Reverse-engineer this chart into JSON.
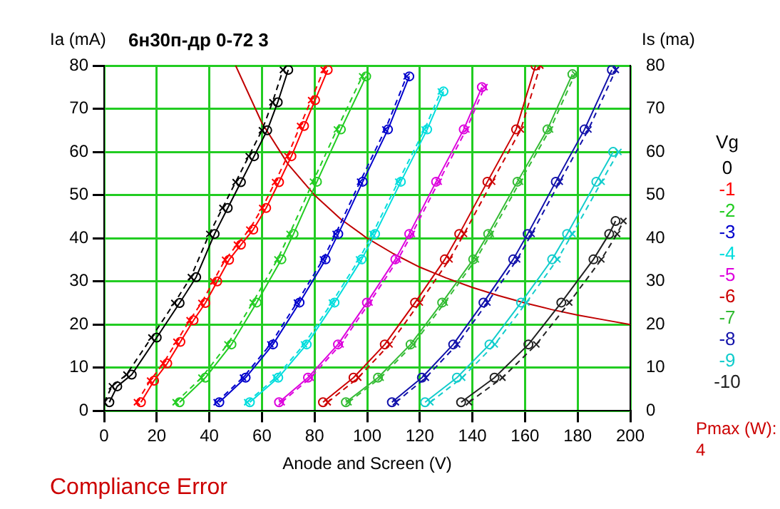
{
  "chart_data": {
    "type": "line",
    "title": "6н30п-др 0-72 3",
    "xlabel": "Anode and Screen (V)",
    "ylabel": "Ia (mA)",
    "y2label": "Is (ma)",
    "legend_title": "Vg",
    "legend": "right",
    "grid": true,
    "xlim": [
      0,
      200
    ],
    "xticks": [
      0,
      20,
      40,
      60,
      80,
      100,
      120,
      140,
      160,
      180,
      200
    ],
    "ylim": [
      0,
      80
    ],
    "yticks": [
      0,
      10,
      20,
      30,
      40,
      50,
      60,
      70,
      80
    ],
    "y2lim": [
      0,
      80
    ],
    "y2ticks": [
      0,
      10,
      20,
      30,
      40,
      50,
      60,
      70,
      80
    ],
    "annotations": [
      "Compliance Error",
      "Pmax (W):",
      "4"
    ],
    "series": [
      {
        "name": "0",
        "color": "#000000",
        "marker": "circle",
        "x": [
          2,
          5,
          10.5,
          20,
          28.7,
          35,
          42,
          47,
          52,
          57,
          62,
          66,
          70
        ],
        "values": [
          2,
          5.7,
          8.4,
          17,
          25,
          31,
          41,
          47,
          53,
          59,
          65,
          71.5,
          79
        ]
      },
      {
        "name": "-1",
        "color": "#ff0000",
        "marker": "circle",
        "x": [
          14,
          19,
          24,
          29,
          34,
          38.5,
          43,
          47.5,
          52,
          56.7,
          61.6,
          66.5,
          71.2,
          76,
          80.2,
          85
        ],
        "values": [
          2,
          7,
          11,
          16,
          21,
          25,
          30,
          35,
          38.5,
          42,
          47,
          53,
          59,
          66,
          72,
          79
        ]
      },
      {
        "name": "-2",
        "color": "#22cc22",
        "marker": "circle",
        "x": [
          28.7,
          38.5,
          48.4,
          58,
          67.4,
          72,
          80.9,
          90,
          99.6
        ],
        "values": [
          2,
          7.7,
          15.4,
          25.1,
          35.1,
          41,
          53.1,
          65.2,
          77.5
        ]
      },
      {
        "name": "-3",
        "color": "#0000cc",
        "marker": "circle",
        "x": [
          43.8,
          53.8,
          64.2,
          74.3,
          84.2,
          89,
          98.3,
          107.9,
          116
        ],
        "values": [
          2,
          7.7,
          15.4,
          25.1,
          35.1,
          41,
          53.1,
          65.2,
          77.5
        ]
      },
      {
        "name": "-4",
        "color": "#00dddd",
        "marker": "circle",
        "x": [
          55.4,
          66.2,
          77,
          87.6,
          97.9,
          103,
          112.8,
          122.8,
          129
        ],
        "values": [
          2,
          7.7,
          15.4,
          25.1,
          35.1,
          41,
          53.1,
          65.2,
          74
        ]
      },
      {
        "name": "-5",
        "color": "#dd00dd",
        "marker": "circle",
        "x": [
          66.5,
          77.5,
          88.9,
          99.9,
          110.7,
          116,
          126.2,
          136.7,
          143.6
        ],
        "values": [
          2,
          7.7,
          15.4,
          25.1,
          35.1,
          41,
          53.1,
          65.2,
          75
        ]
      },
      {
        "name": "-6",
        "color": "#cc0000",
        "marker": "circle",
        "x": [
          83.2,
          94.8,
          106.7,
          118.2,
          129.5,
          135,
          145.7,
          156.6,
          164
        ],
        "values": [
          2,
          7.7,
          15.4,
          25.1,
          35.1,
          41,
          53.1,
          65.2,
          80
        ]
      },
      {
        "name": "-7",
        "color": "#33bb33",
        "marker": "circle",
        "x": [
          91.9,
          104.1,
          116.5,
          128.5,
          140.3,
          146,
          157.1,
          168.5,
          178
        ],
        "values": [
          2,
          7.7,
          15.4,
          25.1,
          35.1,
          41,
          53.1,
          65.2,
          78
        ]
      },
      {
        "name": "-8",
        "color": "#1111aa",
        "marker": "circle",
        "x": [
          109.4,
          120.8,
          132.7,
          144.2,
          155.5,
          161,
          171.7,
          182.6,
          193
        ],
        "values": [
          2,
          7.7,
          15.4,
          25.1,
          35.1,
          41,
          53.1,
          65.2,
          79
        ]
      },
      {
        "name": "-9",
        "color": "#11cccc",
        "marker": "circle",
        "x": [
          122,
          134.1,
          146.5,
          158.5,
          170.3,
          176,
          187.1,
          193.5
        ],
        "values": [
          2,
          7.7,
          15.4,
          25.1,
          35.1,
          41,
          53.1,
          60
        ]
      },
      {
        "name": "-10",
        "color": "#222222",
        "marker": "circle",
        "x": [
          135.7,
          148.4,
          161.3,
          173.8,
          186,
          192,
          194.4
        ],
        "values": [
          2,
          7.7,
          15.4,
          25.1,
          35.1,
          41,
          44
        ]
      },
      {
        "color": "#000000",
        "marker": "cross",
        "line_style": "dashed",
        "x": [
          0,
          3,
          8.5,
          18,
          26.7,
          33,
          40,
          45,
          50,
          55,
          60,
          64,
          68
        ],
        "values": [
          2,
          5.7,
          8.4,
          17,
          25,
          31,
          41,
          47,
          53,
          59,
          65,
          71.5,
          79
        ]
      },
      {
        "color": "#ff0000",
        "marker": "cross",
        "line_style": "dashed",
        "x": [
          12.5,
          17.5,
          22.5,
          27.5,
          32.5,
          37,
          41.5,
          46,
          50.5,
          55.2,
          60.1,
          65,
          69.7,
          74.5,
          78.7,
          83.5
        ],
        "values": [
          2,
          7,
          11,
          16,
          21,
          25,
          30,
          35,
          38.5,
          42,
          47,
          53,
          59,
          66,
          72,
          79
        ]
      },
      {
        "color": "#22cc22",
        "marker": "cross",
        "line_style": "dashed",
        "x": [
          27.2,
          37,
          46.9,
          56.5,
          65.9,
          70.5,
          79.4,
          88.5,
          98.1
        ],
        "values": [
          2,
          7.7,
          15.4,
          25.1,
          35.1,
          41,
          53.1,
          65.2,
          77.5
        ]
      },
      {
        "color": "#0000cc",
        "marker": "cross",
        "line_style": "dashed",
        "x": [
          42.8,
          52.8,
          63.2,
          73.3,
          83.2,
          88,
          97.3,
          106.9,
          115
        ],
        "values": [
          2,
          7.7,
          15.4,
          25.1,
          35.1,
          41,
          53.1,
          65.2,
          77.5
        ]
      },
      {
        "color": "#00dddd",
        "marker": "cross",
        "line_style": "dashed",
        "x": [
          54.4,
          65.2,
          76,
          86.6,
          96.9,
          102,
          111.8,
          121.8,
          128
        ],
        "values": [
          2,
          7.7,
          15.4,
          25.1,
          35.1,
          41,
          53.1,
          65.2,
          74
        ]
      },
      {
        "color": "#dd00dd",
        "marker": "cross",
        "line_style": "dashed",
        "x": [
          67.5,
          78.5,
          89.9,
          100.9,
          111.7,
          117,
          127.2,
          137.7,
          144.6
        ],
        "values": [
          2,
          7.7,
          15.4,
          25.1,
          35.1,
          41,
          53.1,
          65.2,
          75
        ]
      },
      {
        "color": "#cc0000",
        "marker": "cross",
        "line_style": "dashed",
        "x": [
          85,
          96.6,
          108.5,
          120,
          131.3,
          136.8,
          147.5,
          158.4,
          165.8
        ],
        "values": [
          2,
          7.7,
          15.4,
          25.1,
          35.1,
          41,
          53.1,
          65.2,
          80
        ]
      },
      {
        "color": "#33bb33",
        "marker": "cross",
        "line_style": "dashed",
        "x": [
          92.9,
          105.1,
          117.5,
          129.5,
          141.3,
          147,
          158.1,
          169.5,
          179
        ],
        "values": [
          2,
          7.7,
          15.4,
          25.1,
          35.1,
          41,
          53.1,
          65.2,
          78
        ]
      },
      {
        "color": "#1111aa",
        "marker": "cross",
        "line_style": "dashed",
        "x": [
          110.9,
          122.3,
          134.2,
          145.7,
          157,
          162.5,
          173.2,
          184.1,
          194.5
        ],
        "values": [
          2,
          7.7,
          15.4,
          25.1,
          35.1,
          41,
          53.1,
          65.2,
          79
        ]
      },
      {
        "color": "#11cccc",
        "marker": "cross",
        "line_style": "dashed",
        "x": [
          124,
          136.1,
          148.5,
          160.5,
          172.3,
          178,
          189.1,
          195.5
        ],
        "values": [
          2,
          7.7,
          15.4,
          25.1,
          35.1,
          41,
          53.1,
          60
        ]
      },
      {
        "color": "#222222",
        "marker": "cross",
        "line_style": "dashed",
        "x": [
          138.7,
          151.4,
          164.3,
          176.8,
          189,
          195,
          197.4
        ],
        "values": [
          2,
          7.7,
          15.4,
          25.1,
          35.1,
          41,
          44
        ]
      },
      {
        "color": "#c00000",
        "marker": "none",
        "x": [
          50,
          60,
          70,
          80,
          90,
          100,
          110,
          120,
          130,
          140,
          150,
          160,
          170,
          180,
          190,
          200
        ],
        "values": [
          80,
          66.7,
          57.1,
          50,
          44.4,
          40,
          36.4,
          33.3,
          30.8,
          28.6,
          26.7,
          25,
          23.5,
          22.2,
          21.1,
          20
        ]
      }
    ]
  }
}
